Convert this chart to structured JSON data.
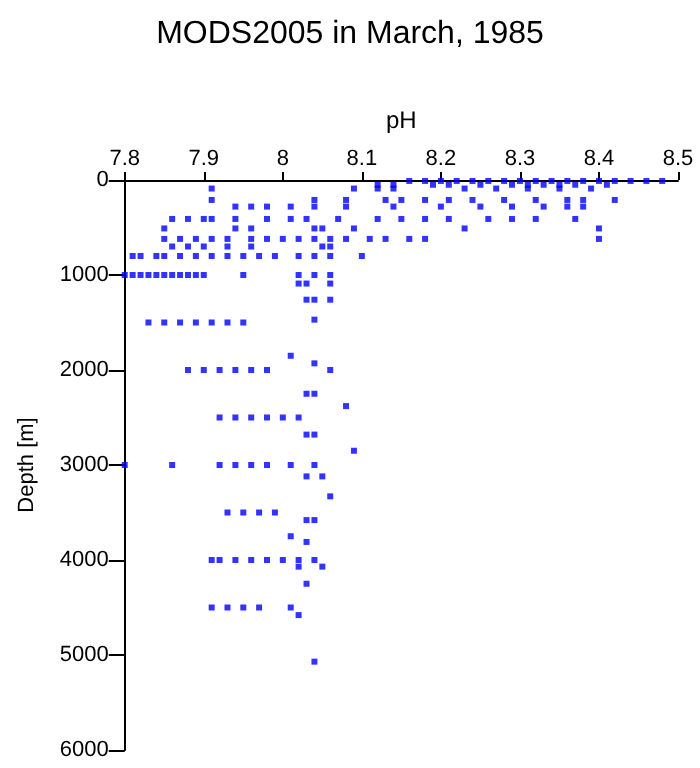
{
  "chart_data": {
    "type": "scatter",
    "title": "MODS2005 in March, 1985",
    "xlabel": "pH",
    "ylabel": "Depth [m]",
    "xlim": [
      7.8,
      8.5
    ],
    "xticks": [
      7.8,
      7.9,
      8,
      8.1,
      8.2,
      8.3,
      8.4,
      8.5
    ],
    "ylim": [
      6000,
      0
    ],
    "yticks": [
      0,
      1000,
      2000,
      3000,
      4000,
      5000,
      6000
    ],
    "grid": false,
    "marker": "square",
    "series": [
      {
        "color": "#0000ff",
        "x": [
          8.16,
          8.18,
          8.2,
          8.22,
          8.24,
          8.26,
          8.28,
          8.3,
          8.32,
          8.34,
          8.36,
          8.38,
          8.4,
          8.42,
          8.44,
          8.46,
          8.48,
          8.12,
          8.14,
          8.19,
          8.21,
          8.25,
          8.29,
          8.31,
          8.33,
          8.35,
          8.37,
          8.41,
          7.91,
          8.09,
          8.12,
          8.14,
          8.23,
          8.27,
          8.31,
          8.35,
          8.39,
          7.91,
          8.04,
          8.08,
          8.13,
          8.15,
          8.18,
          8.21,
          8.24,
          8.28,
          8.32,
          8.36,
          8.38,
          8.42,
          7.94,
          7.96,
          7.98,
          8.01,
          8.04,
          8.08,
          8.14,
          8.2,
          8.25,
          8.29,
          8.33,
          8.36,
          8.38,
          7.86,
          7.88,
          7.9,
          7.91,
          7.94,
          7.98,
          8.01,
          8.03,
          8.07,
          8.12,
          8.15,
          8.18,
          8.21,
          8.26,
          8.29,
          8.32,
          8.37,
          7.85,
          7.94,
          7.96,
          8.04,
          8.05,
          8.09,
          8.23,
          8.4,
          7.85,
          7.87,
          7.89,
          7.91,
          7.93,
          7.96,
          7.98,
          8.0,
          8.02,
          8.04,
          8.06,
          8.08,
          8.11,
          8.13,
          8.16,
          8.18,
          8.4,
          7.86,
          7.88,
          7.9,
          7.93,
          7.96,
          8.05,
          8.06,
          7.81,
          7.82,
          7.84,
          7.85,
          7.87,
          7.89,
          7.91,
          7.93,
          7.95,
          7.97,
          7.99,
          8.02,
          8.04,
          8.06,
          8.1,
          7.8,
          7.81,
          7.82,
          7.83,
          7.84,
          7.85,
          7.86,
          7.87,
          7.88,
          7.89,
          7.9,
          7.95,
          8.02,
          8.04,
          8.06,
          8.02,
          8.03,
          8.06,
          8.03,
          8.04,
          8.06,
          8.04,
          7.83,
          7.85,
          7.87,
          7.89,
          7.91,
          7.93,
          7.95,
          8.01,
          8.04,
          7.88,
          7.9,
          7.92,
          7.94,
          7.96,
          7.98,
          8.06,
          8.03,
          8.04,
          8.08,
          7.92,
          7.94,
          7.96,
          7.98,
          8.0,
          8.02,
          8.03,
          8.04,
          8.09,
          7.8,
          7.86,
          7.92,
          7.94,
          7.96,
          7.98,
          8.01,
          8.04,
          8.03,
          8.05,
          8.06,
          7.93,
          7.95,
          7.97,
          7.99,
          8.03,
          8.04,
          8.01,
          8.03,
          7.91,
          7.92,
          7.94,
          7.96,
          7.98,
          8.0,
          8.02,
          8.04,
          8.02,
          8.05,
          8.03,
          7.91,
          7.93,
          7.95,
          7.97,
          8.01,
          8.02,
          8.04
        ],
        "values": [
          10,
          10,
          10,
          10,
          10,
          10,
          10,
          10,
          10,
          10,
          10,
          10,
          10,
          10,
          10,
          10,
          10,
          50,
          50,
          50,
          50,
          50,
          50,
          50,
          50,
          50,
          50,
          50,
          90,
          90,
          90,
          90,
          90,
          90,
          90,
          90,
          90,
          210,
          210,
          210,
          210,
          210,
          210,
          210,
          210,
          210,
          210,
          210,
          210,
          210,
          280,
          280,
          280,
          280,
          280,
          280,
          280,
          280,
          280,
          280,
          280,
          280,
          280,
          410,
          410,
          410,
          410,
          410,
          410,
          410,
          410,
          410,
          410,
          410,
          410,
          410,
          410,
          410,
          410,
          410,
          510,
          510,
          510,
          510,
          510,
          510,
          510,
          510,
          620,
          620,
          620,
          620,
          620,
          620,
          620,
          620,
          620,
          620,
          620,
          620,
          620,
          620,
          620,
          620,
          620,
          700,
          700,
          700,
          700,
          700,
          700,
          700,
          800,
          800,
          800,
          800,
          800,
          800,
          800,
          800,
          800,
          800,
          800,
          800,
          800,
          800,
          800,
          1000,
          1000,
          1000,
          1000,
          1000,
          1000,
          1000,
          1000,
          1000,
          1000,
          1000,
          1000,
          1000,
          1000,
          1000,
          1090,
          1090,
          1090,
          1260,
          1260,
          1260,
          1470,
          1500,
          1500,
          1500,
          1500,
          1500,
          1500,
          1500,
          1850,
          1930,
          2000,
          2000,
          2000,
          2000,
          2000,
          2000,
          2000,
          2250,
          2250,
          2380,
          2500,
          2500,
          2500,
          2500,
          2500,
          2500,
          2680,
          2680,
          2850,
          3000,
          3000,
          3000,
          3000,
          3000,
          3000,
          3000,
          3000,
          3120,
          3120,
          3330,
          3500,
          3500,
          3500,
          3500,
          3580,
          3580,
          3750,
          3810,
          4000,
          4000,
          4000,
          4000,
          4000,
          4000,
          4000,
          4000,
          4070,
          4070,
          4250,
          4500,
          4500,
          4500,
          4500,
          4500,
          4580,
          5070
        ]
      }
    ]
  }
}
